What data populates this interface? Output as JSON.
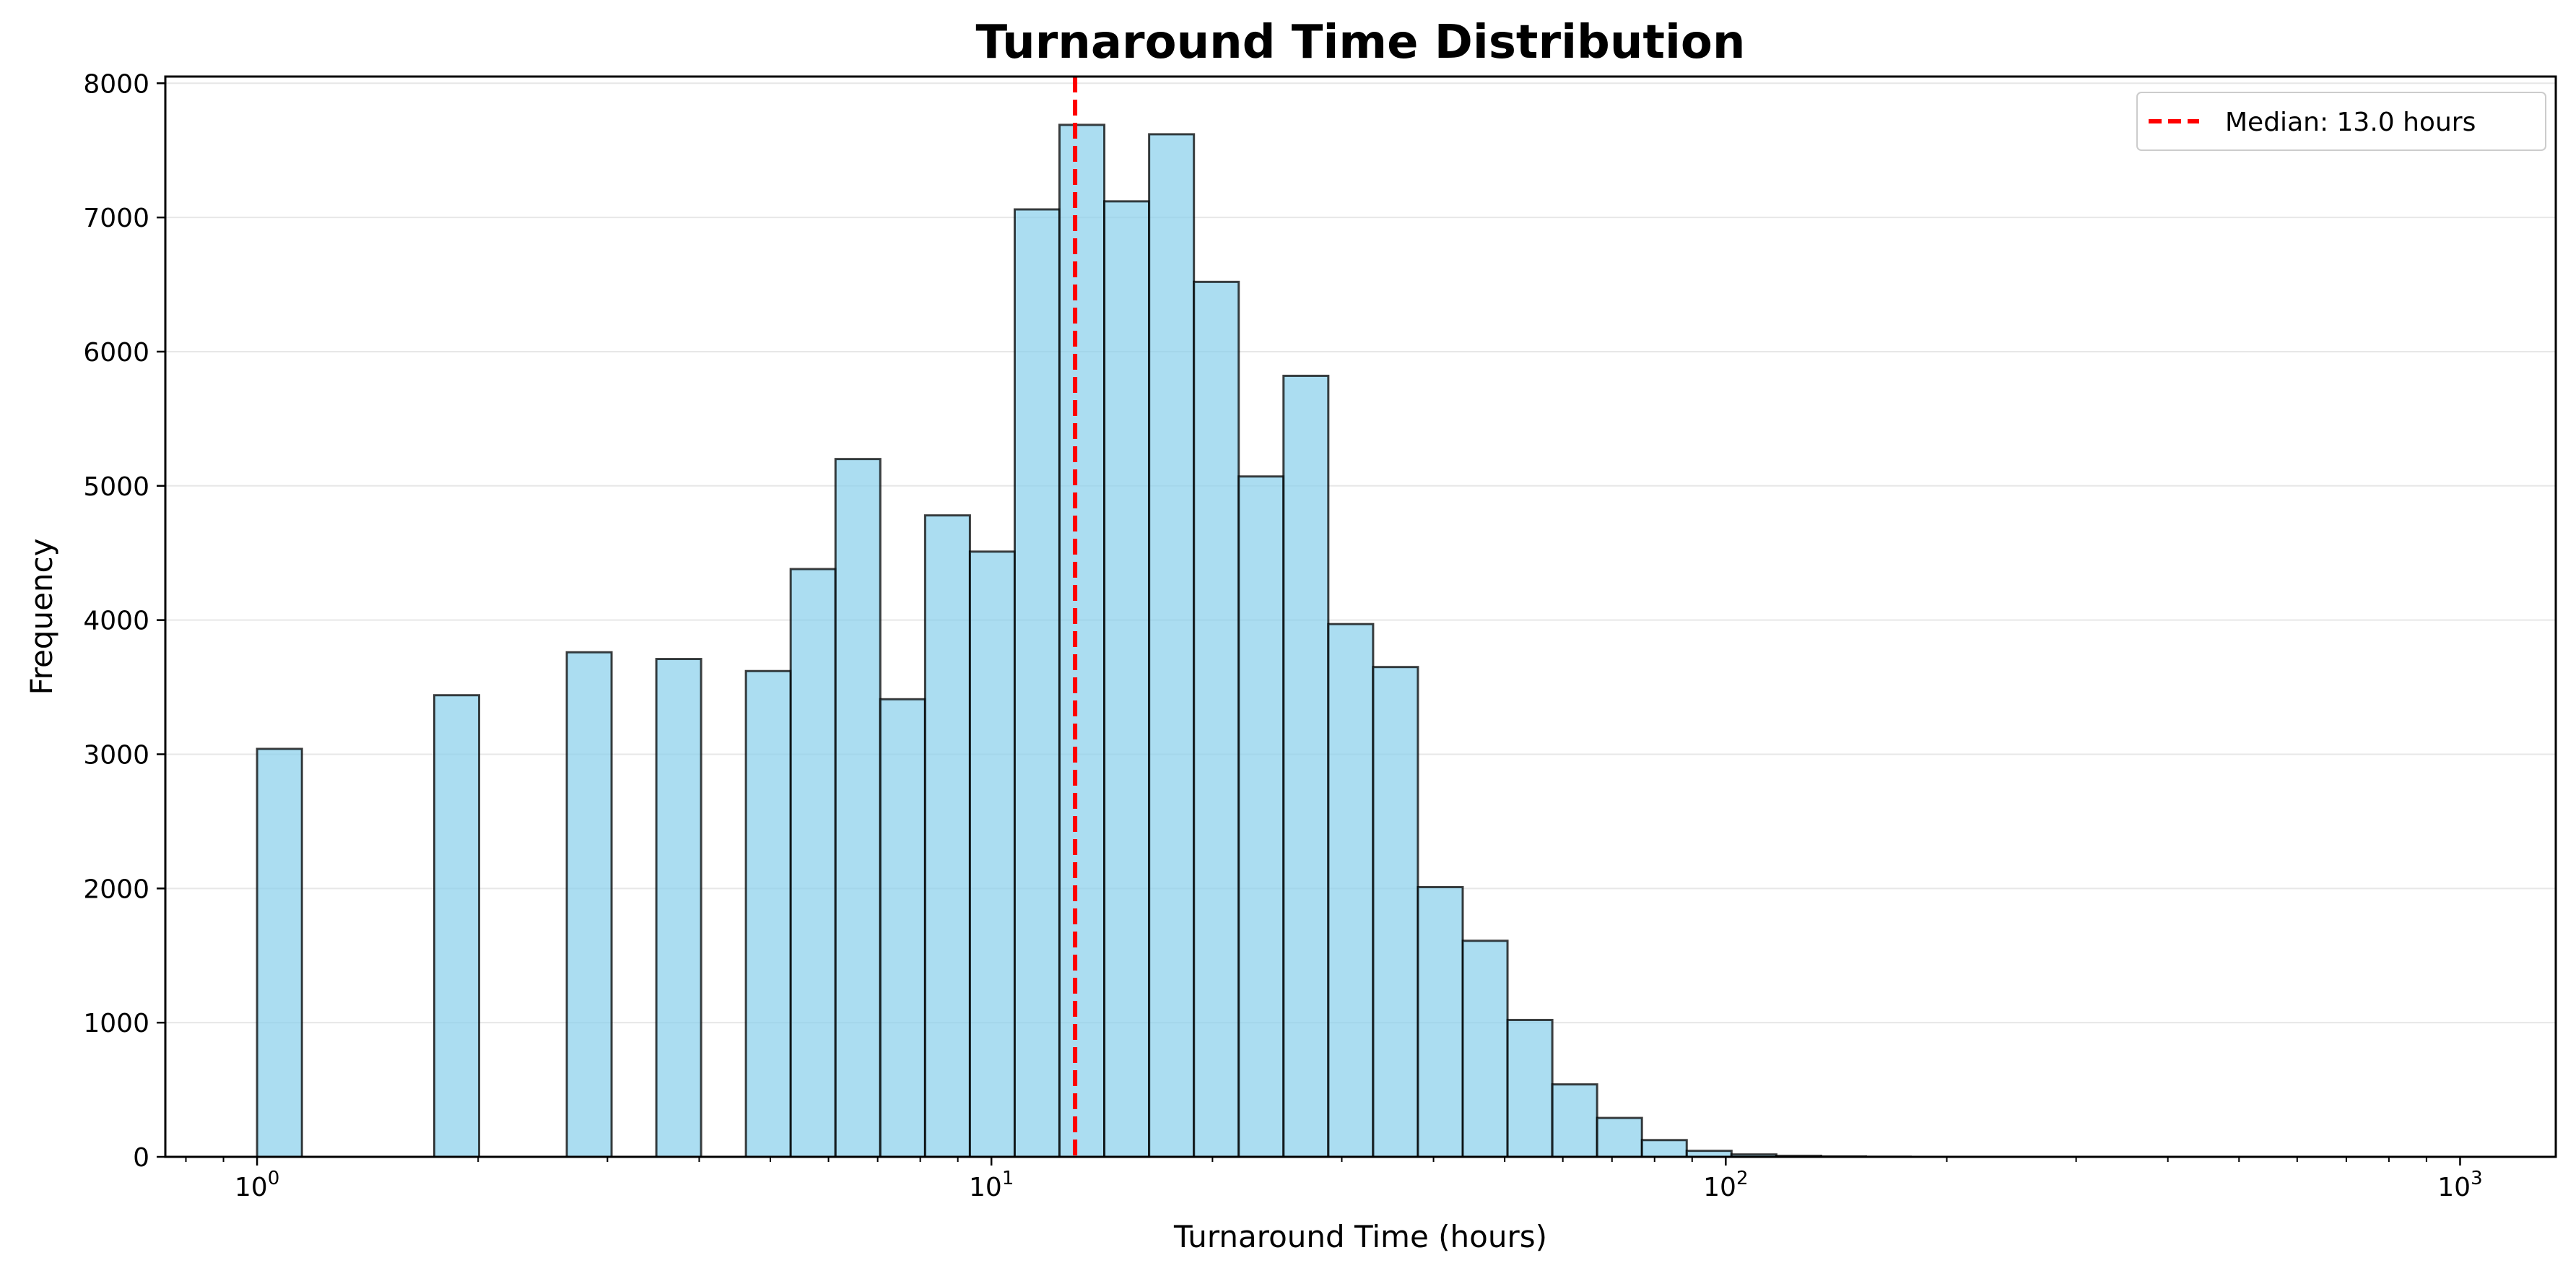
{
  "chart_data": {
    "type": "bar",
    "title": "Turnaround Time Distribution",
    "xlabel": "Turnaround Time (hours)",
    "ylabel": "Frequency",
    "x_scale": "log",
    "xlim": [
      0.75,
      1350
    ],
    "ylim": [
      0,
      8050
    ],
    "yticks": [
      0,
      1000,
      2000,
      3000,
      4000,
      5000,
      6000,
      7000,
      8000
    ],
    "ytick_labels": [
      "0",
      "1000",
      "2000",
      "3000",
      "4000",
      "5000",
      "6000",
      "7000",
      "8000"
    ],
    "xticks": [
      1,
      10,
      100,
      1000
    ],
    "xtick_labels": [
      {
        "base": "10",
        "exp": "0"
      },
      {
        "base": "10",
        "exp": "1"
      },
      {
        "base": "10",
        "exp": "2"
      },
      {
        "base": "10",
        "exp": "3"
      }
    ],
    "grid": "horizontal",
    "legend_position": "top-right",
    "bar_color": "#87CEEB",
    "bar_edge_color": "#000000",
    "median_line_color": "#FF0000",
    "median": 13.0,
    "legend": [
      "Median: 13.0 hours"
    ],
    "bins": [
      {
        "x0": 1.0,
        "x1": 1.151,
        "count": 3040
      },
      {
        "x0": 1.743,
        "x1": 2.006,
        "count": 3440
      },
      {
        "x0": 2.641,
        "x1": 3.039,
        "count": 3760
      },
      {
        "x0": 3.497,
        "x1": 4.024,
        "count": 3710
      },
      {
        "x0": 4.631,
        "x1": 5.329,
        "count": 3620
      },
      {
        "x0": 5.329,
        "x1": 6.133,
        "count": 4380
      },
      {
        "x0": 6.133,
        "x1": 7.058,
        "count": 5200
      },
      {
        "x0": 7.058,
        "x1": 8.123,
        "count": 3410
      },
      {
        "x0": 8.123,
        "x1": 9.348,
        "count": 4780
      },
      {
        "x0": 9.348,
        "x1": 10.758,
        "count": 4510
      },
      {
        "x0": 10.758,
        "x1": 12.38,
        "count": 7060
      },
      {
        "x0": 12.38,
        "x1": 14.248,
        "count": 7690
      },
      {
        "x0": 14.248,
        "x1": 16.397,
        "count": 7120
      },
      {
        "x0": 16.397,
        "x1": 18.87,
        "count": 7620
      },
      {
        "x0": 18.87,
        "x1": 21.716,
        "count": 6520
      },
      {
        "x0": 21.716,
        "x1": 24.991,
        "count": 5070
      },
      {
        "x0": 24.991,
        "x1": 28.76,
        "count": 5820
      },
      {
        "x0": 28.76,
        "x1": 33.098,
        "count": 3970
      },
      {
        "x0": 33.098,
        "x1": 38.09,
        "count": 3650
      },
      {
        "x0": 38.09,
        "x1": 43.835,
        "count": 2010
      },
      {
        "x0": 43.835,
        "x1": 50.446,
        "count": 1610
      },
      {
        "x0": 50.446,
        "x1": 58.054,
        "count": 1020
      },
      {
        "x0": 58.054,
        "x1": 66.81,
        "count": 540
      },
      {
        "x0": 66.81,
        "x1": 76.886,
        "count": 290
      },
      {
        "x0": 76.886,
        "x1": 88.483,
        "count": 125
      },
      {
        "x0": 88.483,
        "x1": 101.828,
        "count": 45
      },
      {
        "x0": 101.828,
        "x1": 117.186,
        "count": 18
      },
      {
        "x0": 117.186,
        "x1": 134.86,
        "count": 8
      },
      {
        "x0": 134.86,
        "x1": 155.2,
        "count": 3
      },
      {
        "x0": 155.2,
        "x1": 178.608,
        "count": 1
      }
    ]
  }
}
